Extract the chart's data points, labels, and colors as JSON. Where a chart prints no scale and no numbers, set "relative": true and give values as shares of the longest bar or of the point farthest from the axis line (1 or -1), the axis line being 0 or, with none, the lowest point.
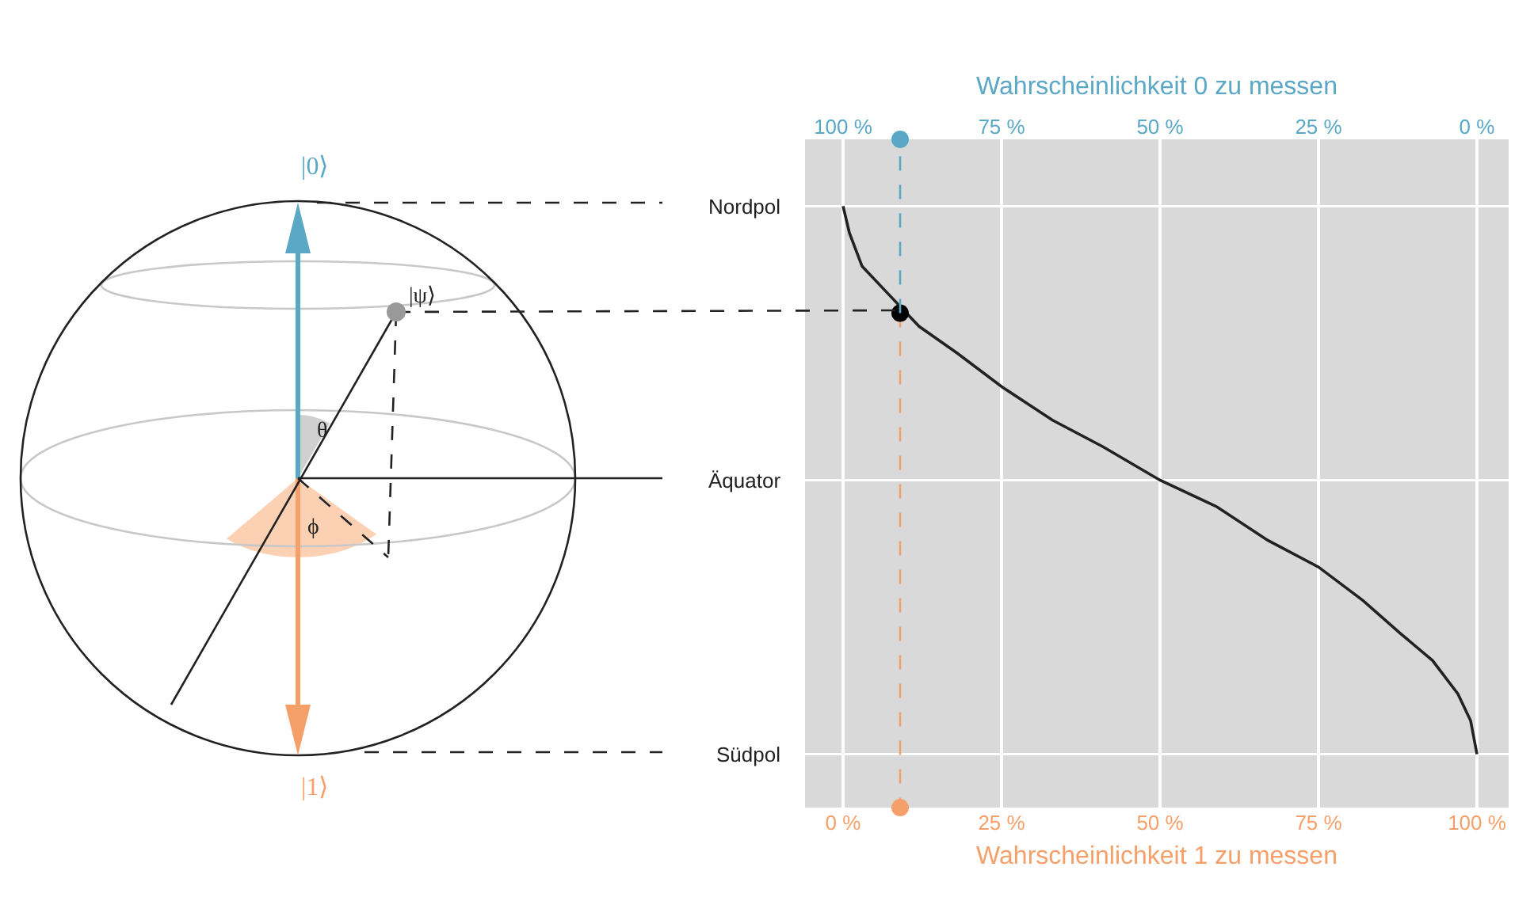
{
  "chart_data": {
    "type": "line",
    "relative": true,
    "x2label": "Wahrscheinlichkeit 0 zu messen",
    "xlabel": "Wahrscheinlichkeit 1 zu messen",
    "xlim": [
      -6,
      105
    ],
    "xticks": [
      {
        "value": 0,
        "label": "0 %"
      },
      {
        "value": 25,
        "label": "25 %"
      },
      {
        "value": 50,
        "label": "50 %"
      },
      {
        "value": 75,
        "label": "75 %"
      },
      {
        "value": 100,
        "label": "100 %"
      }
    ],
    "x2lim": [
      106,
      -5
    ],
    "x2ticks": [
      {
        "value": 100,
        "label": "100 %"
      },
      {
        "value": 75,
        "label": "75 %"
      },
      {
        "value": 50,
        "label": "50 %"
      },
      {
        "value": 25,
        "label": "25 %"
      },
      {
        "value": 0,
        "label": "0 %"
      }
    ],
    "ref_lines": [
      {
        "axis": "y",
        "value": 0.9,
        "label": "Nordpol",
        "color": "#ffffff"
      },
      {
        "axis": "y",
        "value": 0.49,
        "label": "Äquator",
        "color": "#ffffff"
      },
      {
        "axis": "y",
        "value": 0.08,
        "label": "Südpol",
        "color": "#ffffff"
      }
    ],
    "grid": "x",
    "annotations": [
      "|0⟩",
      "|ψ⟩",
      "θ",
      "ϕ",
      "|1⟩"
    ],
    "series": [
      {
        "color": "#222222",
        "line_style": "solid",
        "x": [
          0,
          1,
          3,
          7,
          12,
          18,
          25,
          33,
          41,
          50,
          59,
          67,
          75,
          82,
          88,
          93,
          97,
          99,
          100
        ],
        "values": [
          0.9,
          0.86,
          0.81,
          0.77,
          0.72,
          0.68,
          0.63,
          0.58,
          0.54,
          0.49,
          0.45,
          0.4,
          0.36,
          0.31,
          0.26,
          0.22,
          0.17,
          0.13,
          0.08
        ]
      },
      {
        "axis": "x2",
        "color": "#5aa8c6",
        "line_style": "dashed",
        "x": [
          91,
          91
        ],
        "values": [
          0.74,
          1
        ]
      },
      {
        "color": "#f5a06a",
        "line_style": "dashed",
        "x": [
          9,
          9
        ],
        "values": [
          0.74,
          0
        ]
      },
      {
        "type": "scatter",
        "axis": "x2",
        "color": "#5aa8c6",
        "marker": "circle",
        "x": [
          91
        ],
        "values": [
          1
        ]
      },
      {
        "type": "scatter",
        "color": "#f5a06a",
        "marker": "circle",
        "x": [
          9
        ],
        "values": [
          0
        ]
      },
      {
        "type": "scatter",
        "color": "#000000",
        "marker": "circle",
        "x": [
          9
        ],
        "values": [
          0.74
        ]
      }
    ]
  }
}
